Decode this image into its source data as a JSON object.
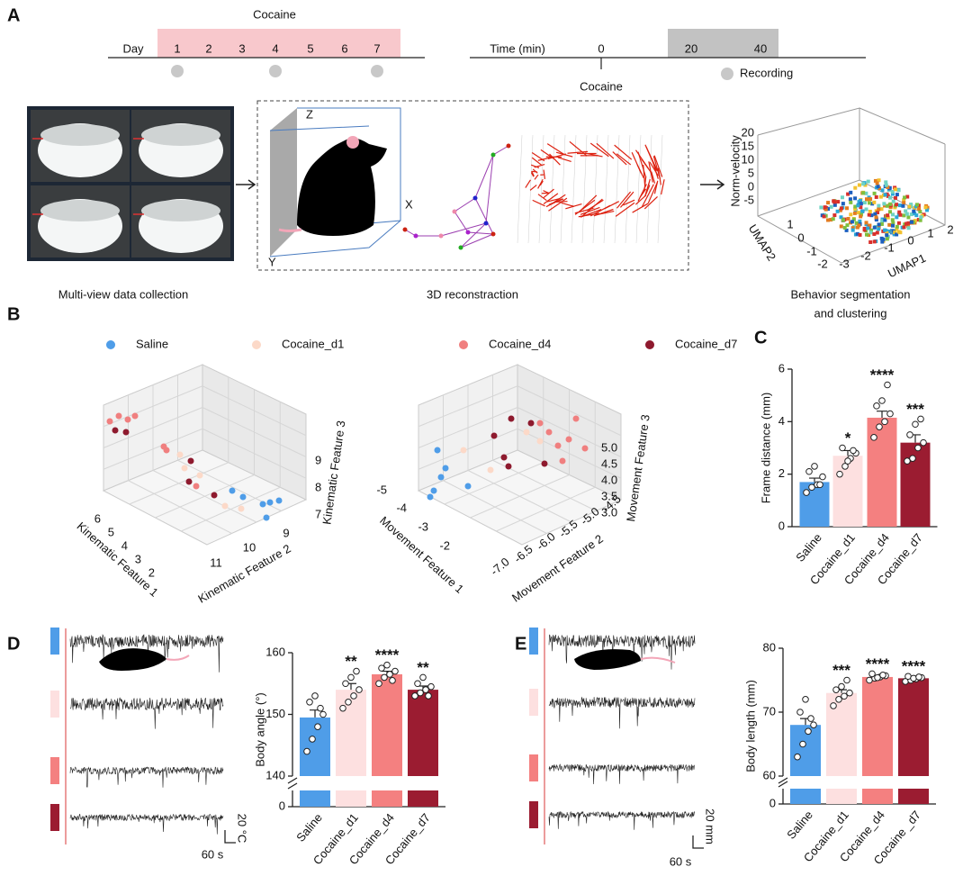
{
  "panel_labels": [
    "A",
    "B",
    "C",
    "D",
    "E"
  ],
  "panel_a": {
    "timeline1": {
      "title": "Cocaine",
      "day_label": "Day",
      "days": [
        "1",
        "2",
        "3",
        "4",
        "5",
        "6",
        "7"
      ]
    },
    "timeline2": {
      "time_label": "Time (min)",
      "ticks": [
        "0",
        "20",
        "40"
      ],
      "event": "Cocaine",
      "legend": "Recording"
    },
    "recon_axes": [
      "Z",
      "X",
      "Y"
    ],
    "umap": {
      "z_label": "Norm-velocity",
      "z_ticks": [
        "20",
        "15",
        "10",
        "5",
        "0",
        "-5"
      ],
      "x_label": "UMAP1",
      "x_ticks": [
        "-3",
        "-2",
        "-1",
        "0",
        "1",
        "2"
      ],
      "y_label": "UMAP2",
      "y_ticks": [
        "1",
        "0",
        "-1",
        "-2"
      ]
    },
    "captions": [
      [
        "Multi-view data collection"
      ],
      [
        "3D reconstraction"
      ],
      [
        "Behavior segmentation",
        "and clustering"
      ]
    ]
  },
  "panel_b": {
    "legend": [
      "Saline",
      "Cocaine_d1",
      "Cocaine_d4",
      "Cocaine_d7"
    ],
    "colors": [
      "#4f9de8",
      "#fcd9c8",
      "#f07f7f",
      "#8e1a2e"
    ],
    "left": {
      "x_label": "Kinematic Feature 1",
      "x_ticks": [
        "6",
        "5",
        "4",
        "3",
        "2"
      ],
      "y_label": "Kinematic Feature 2",
      "y_ticks": [
        "11",
        "10",
        "9"
      ],
      "z_label": "Kinematic Feature 3",
      "z_ticks": [
        "7",
        "8",
        "9"
      ]
    },
    "right": {
      "x_label": "Movement Feature 1",
      "x_ticks": [
        "-5",
        "-4",
        "-3",
        "-2"
      ],
      "y_label": "Movement Feature 2",
      "y_ticks": [
        "-7.0",
        "-6.5",
        "-6.0",
        "-5.5",
        "-5.0",
        "-4.5"
      ],
      "z_label": "Movement Feature 3",
      "z_ticks": [
        "3.0",
        "3.5",
        "4.0",
        "4.5",
        "5.0"
      ]
    }
  },
  "panel_d": {
    "scale_bar": [
      "20 °C",
      "60 s"
    ]
  },
  "panel_e": {
    "scale_bar": [
      "20 mm",
      "60 s"
    ]
  },
  "chart_data": [
    {
      "type": "bar",
      "ylabel": "Frame distance (mm)",
      "categories": [
        "Saline",
        "Cocaine_d1",
        "Cocaine_d4",
        "Cocaine_d7"
      ],
      "values": [
        1.7,
        2.7,
        4.15,
        3.2
      ],
      "errors": [
        0.15,
        0.2,
        0.25,
        0.3
      ],
      "points": [
        [
          1.3,
          1.5,
          1.6,
          1.9,
          2.1,
          2.3,
          1.6
        ],
        [
          2.0,
          2.3,
          2.6,
          2.8,
          3.0,
          2.5,
          2.9
        ],
        [
          3.4,
          3.8,
          4.0,
          4.3,
          4.6,
          4.8,
          5.4
        ],
        [
          2.5,
          2.6,
          3.0,
          3.2,
          3.5,
          3.9,
          4.1
        ]
      ],
      "annotations": [
        null,
        "*",
        "****",
        "***"
      ],
      "colors": [
        "#4f9de8",
        "#fde0e0",
        "#f48080",
        "#9b1c31"
      ],
      "ylim": [
        0,
        6
      ],
      "yticks": [
        0,
        2,
        4,
        6
      ]
    },
    {
      "type": "bar",
      "ylabel": "Body angle (°)",
      "categories": [
        "Saline",
        "Cocaine_d1",
        "Cocaine_d4",
        "Cocaine_d7"
      ],
      "values": [
        149.5,
        154,
        156.5,
        154
      ],
      "errors": [
        1.2,
        1.0,
        0.5,
        0.6
      ],
      "points": [
        [
          144,
          146,
          148,
          150,
          152,
          153,
          151
        ],
        [
          151,
          152,
          153,
          154,
          155,
          156,
          157
        ],
        [
          155,
          156,
          156.5,
          157,
          157.5,
          158,
          155.5
        ],
        [
          153,
          153.5,
          154,
          154.5,
          155,
          156,
          153
        ]
      ],
      "annotations": [
        null,
        "**",
        "****",
        "**"
      ],
      "colors": [
        "#4f9de8",
        "#fde0e0",
        "#f48080",
        "#9b1c31"
      ],
      "ylim": [
        140,
        160
      ],
      "yticks": [
        140,
        150,
        160
      ],
      "lower_ticks": [
        0
      ]
    },
    {
      "type": "bar",
      "ylabel": "Body length (mm)",
      "categories": [
        "Saline",
        "Cocaine_d1",
        "Cocaine_d4",
        "Cocaine _d7"
      ],
      "values": [
        68,
        73,
        75.5,
        75.3
      ],
      "errors": [
        1.0,
        0.5,
        0.2,
        0.3
      ],
      "points": [
        [
          63,
          65,
          67,
          68,
          70,
          72,
          69
        ],
        [
          71,
          72,
          72.5,
          73,
          73.5,
          74,
          75
        ],
        [
          75,
          75.3,
          75.5,
          75.7,
          76,
          75.4,
          75.8
        ],
        [
          74.8,
          75,
          75.2,
          75.4,
          75.6,
          75.3,
          75.5
        ]
      ],
      "annotations": [
        null,
        "***",
        "****",
        "****"
      ],
      "colors": [
        "#4f9de8",
        "#fde0e0",
        "#f48080",
        "#9b1c31"
      ],
      "ylim": [
        60,
        80
      ],
      "yticks": [
        60,
        70,
        80
      ],
      "lower_ticks": [
        0
      ]
    }
  ]
}
